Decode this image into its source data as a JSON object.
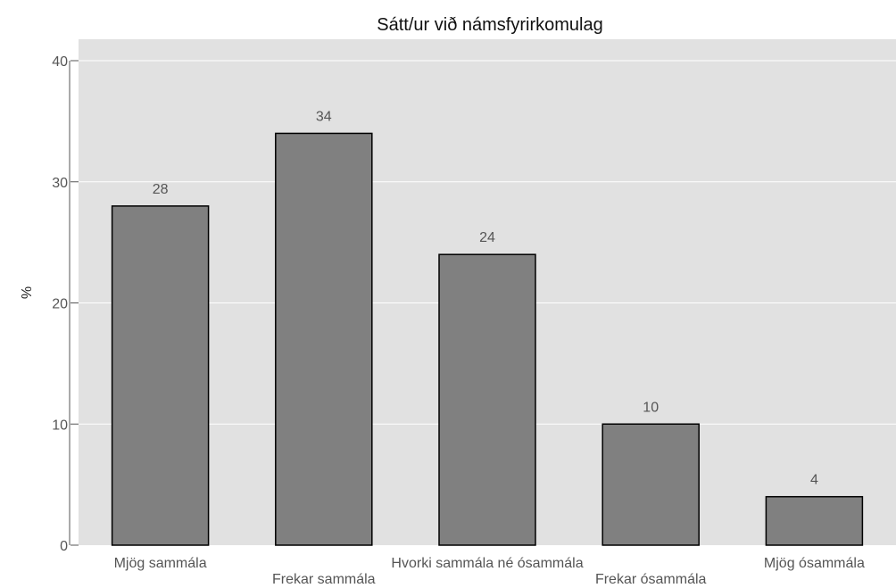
{
  "chart_data": {
    "type": "bar",
    "title": "Sátt/ur við námsfyrirkomulag",
    "xlabel": "",
    "ylabel": "%",
    "categories": [
      "Mjög sammála",
      "Frekar sammála",
      "Hvorki sammála né ósammála",
      "Frekar ósammála",
      "Mjög ósammála"
    ],
    "values": [
      28,
      34,
      24,
      10,
      4
    ],
    "data_labels": [
      "28",
      "34",
      "24",
      "10",
      "4"
    ],
    "ylim": [
      0,
      40
    ],
    "yticks": [
      0,
      10,
      20,
      30,
      40
    ],
    "grid": true,
    "legend": "none",
    "colors": {
      "plot_background": "#e1e1e1",
      "bar_fill": "#808080",
      "bar_stroke": "#000000",
      "gridline": "#ffffff"
    }
  }
}
